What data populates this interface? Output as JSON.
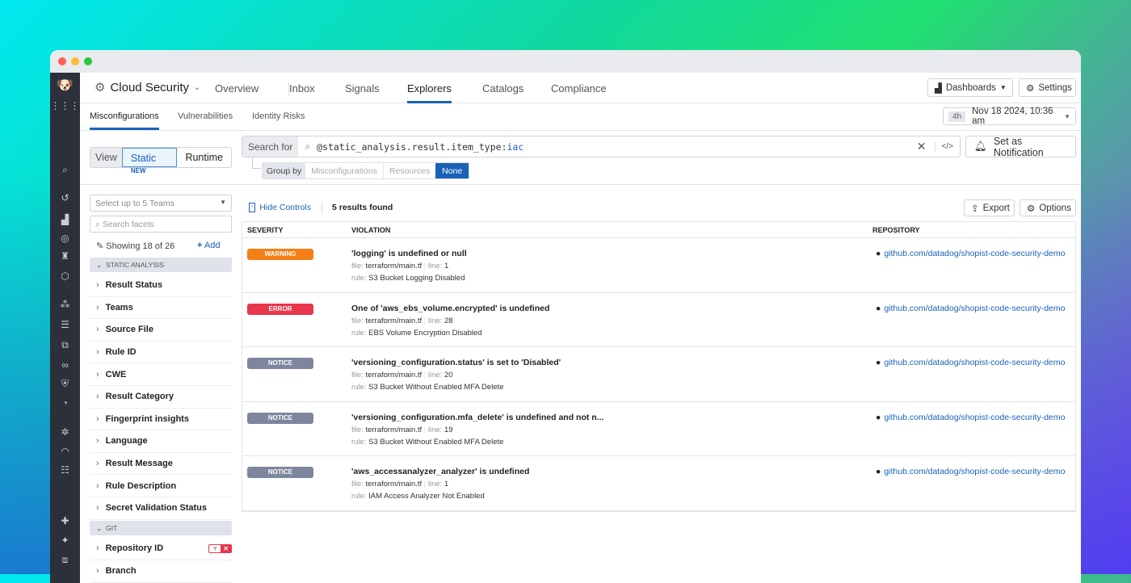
{
  "window": {
    "traffic_lights": [
      "#ff5f57",
      "#febc2e",
      "#28c840"
    ]
  },
  "nav": {
    "product": "Cloud Security",
    "items": [
      "Overview",
      "Inbox",
      "Signals",
      "Explorers",
      "Catalogs",
      "Compliance"
    ],
    "active": "Explorers",
    "dashboards": "Dashboards",
    "settings": "Settings"
  },
  "subtabs": {
    "items": [
      "Misconfigurations",
      "Vulnerabilities",
      "Identity Risks"
    ],
    "active": "Misconfigurations"
  },
  "time": {
    "range": "4h",
    "value": "Nov 18 2024, 10:36 am"
  },
  "view": {
    "label": "View",
    "static": "Static",
    "new_badge": "NEW",
    "runtime": "Runtime"
  },
  "search": {
    "label": "Search for",
    "query_key": "@static_analysis.result.item_type:",
    "query_value": "iac",
    "notification": "Set as Notification"
  },
  "group_by": {
    "label": "Group by",
    "options": [
      "Misconfigurations",
      "Resources",
      "None"
    ],
    "selected": "None"
  },
  "facets": {
    "teams_placeholder": "Select up to 5 Teams",
    "search_placeholder": "Search facets",
    "showing": "Showing 18 of 26",
    "add": "Add",
    "section1": "STATIC ANALYSIS",
    "items": [
      "Result Status",
      "Teams",
      "Source File",
      "Rule ID",
      "CWE",
      "Result Category",
      "Fingerprint insights",
      "Language",
      "Result Message",
      "Rule Description",
      "Secret Validation Status"
    ],
    "section2": "GIT",
    "git_items": [
      "Repository ID",
      "Branch"
    ]
  },
  "results": {
    "hide_controls": "Hide Controls",
    "count": "5 results found",
    "export": "Export",
    "options": "Options",
    "columns": [
      "SEVERITY",
      "VIOLATION",
      "REPOSITORY"
    ],
    "labels": {
      "file": "file:",
      "line": "line:",
      "rule": "rule:"
    },
    "rows": [
      {
        "severity": "WARNING",
        "color": "#f57f17",
        "title": "'logging' is undefined or null",
        "file": "terraform/main.tf",
        "line": "1",
        "rule": "S3 Bucket Logging Disabled",
        "repo": "github.com/datadog/shopist-code-security-demo"
      },
      {
        "severity": "ERROR",
        "color": "#e8364a",
        "title": "One of 'aws_ebs_volume.encrypted' is undefined",
        "file": "terraform/main.tf",
        "line": "28",
        "rule": "EBS Volume Encryption Disabled",
        "repo": "github.com/datadog/shopist-code-security-demo"
      },
      {
        "severity": "NOTICE",
        "color": "#7d869c",
        "title": "'versioning_configuration.status' is set to 'Disabled'",
        "file": "terraform/main.tf",
        "line": "20",
        "rule": "S3 Bucket Without Enabled MFA Delete",
        "repo": "github.com/datadog/shopist-code-security-demo"
      },
      {
        "severity": "NOTICE",
        "color": "#7d869c",
        "title": "'versioning_configuration.mfa_delete' is undefined and not n...",
        "file": "terraform/main.tf",
        "line": "19",
        "rule": "S3 Bucket Without Enabled MFA Delete",
        "repo": "github.com/datadog/shopist-code-security-demo"
      },
      {
        "severity": "NOTICE",
        "color": "#7d869c",
        "title": "'aws_accessanalyzer_analyzer' is undefined",
        "file": "terraform/main.tf",
        "line": "1",
        "rule": "IAM Access Analyzer Not Enabled",
        "repo": "github.com/datadog/shopist-code-security-demo"
      }
    ]
  }
}
